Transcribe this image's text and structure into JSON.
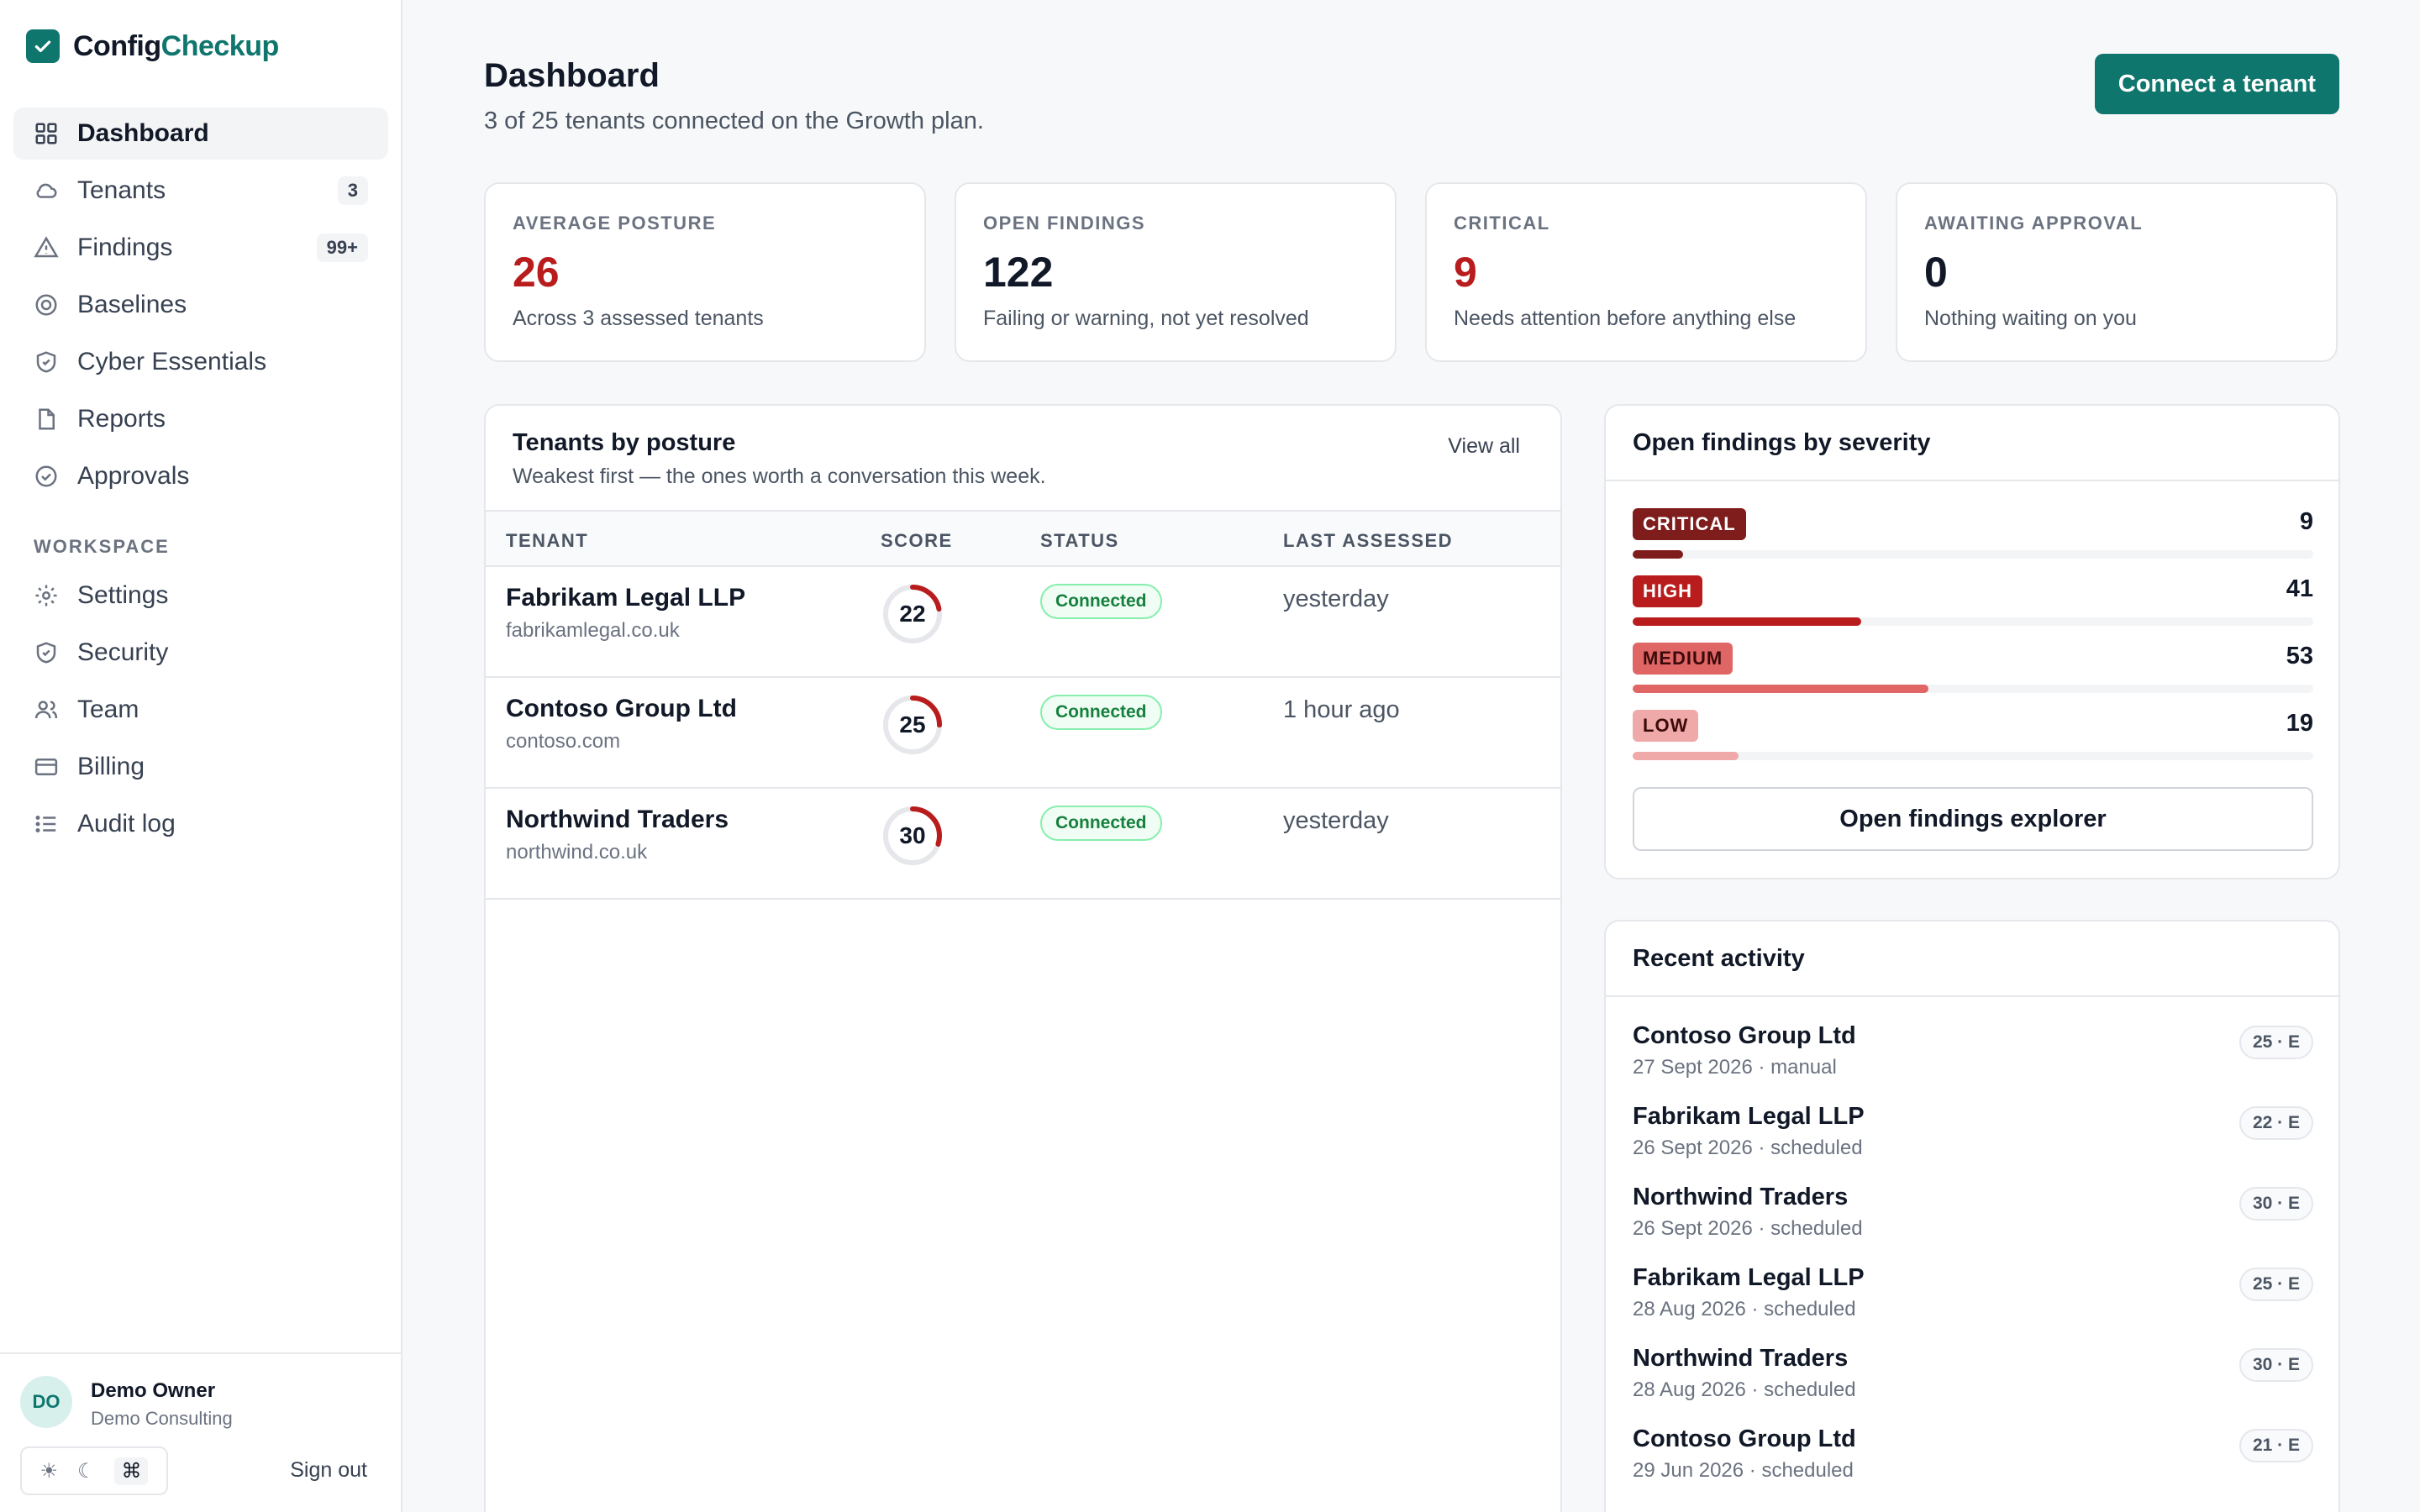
{
  "brand": {
    "part1": "Config",
    "part2": "Checkup"
  },
  "nav": {
    "items": [
      {
        "label": "Dashboard",
        "icon": "grid-icon"
      },
      {
        "label": "Tenants",
        "icon": "cloud-icon",
        "badge": "3"
      },
      {
        "label": "Findings",
        "icon": "warning-icon",
        "badge": "99+"
      },
      {
        "label": "Baselines",
        "icon": "target-icon"
      },
      {
        "label": "Cyber Essentials",
        "icon": "shield-check-icon"
      },
      {
        "label": "Reports",
        "icon": "document-icon"
      },
      {
        "label": "Approvals",
        "icon": "check-circle-icon"
      }
    ],
    "section_label": "WORKSPACE",
    "workspace_items": [
      {
        "label": "Settings",
        "icon": "gear-icon"
      },
      {
        "label": "Security",
        "icon": "shield-icon"
      },
      {
        "label": "Team",
        "icon": "users-icon"
      },
      {
        "label": "Billing",
        "icon": "credit-card-icon"
      },
      {
        "label": "Audit log",
        "icon": "list-icon"
      }
    ]
  },
  "user": {
    "initials": "DO",
    "name": "Demo Owner",
    "org": "Demo Consulting",
    "theme_light": "☀",
    "theme_dark": "☾",
    "theme_system": "⌘",
    "sign_out": "Sign out"
  },
  "header": {
    "title": "Dashboard",
    "subtitle": "3 of 25 tenants connected on the Growth plan.",
    "connect_button": "Connect a tenant"
  },
  "stats": [
    {
      "label": "AVERAGE POSTURE",
      "value": "26",
      "desc": "Across 3 assessed tenants",
      "color": "#b91c1c"
    },
    {
      "label": "OPEN FINDINGS",
      "value": "122",
      "desc": "Failing or warning, not yet resolved",
      "color": "#111827"
    },
    {
      "label": "CRITICAL",
      "value": "9",
      "desc": "Needs attention before anything else",
      "color": "#b91c1c"
    },
    {
      "label": "AWAITING APPROVAL",
      "value": "0",
      "desc": "Nothing waiting on you",
      "color": "#111827"
    }
  ],
  "tenants": {
    "title": "Tenants by posture",
    "subtitle": "Weakest first — the ones worth a conversation this week.",
    "view_all": "View all",
    "columns": [
      "TENANT",
      "SCORE",
      "STATUS",
      "LAST ASSESSED"
    ],
    "rows": [
      {
        "name": "Fabrikam Legal LLP",
        "domain": "fabrikamlegal.co.uk",
        "score": 22,
        "status": "Connected",
        "last": "yesterday"
      },
      {
        "name": "Contoso Group Ltd",
        "domain": "contoso.com",
        "score": 25,
        "status": "Connected",
        "last": "1 hour ago"
      },
      {
        "name": "Northwind Traders",
        "domain": "northwind.co.uk",
        "score": 30,
        "status": "Connected",
        "last": "yesterday"
      }
    ]
  },
  "severity": {
    "title": "Open findings by severity",
    "max": 122,
    "items": [
      {
        "label": "CRITICAL",
        "count": "9",
        "value": 9,
        "pill_bg": "#7f1d1d",
        "pill_fg": "#ffffff",
        "bar": "#7f1d1d"
      },
      {
        "label": "HIGH",
        "count": "41",
        "value": 41,
        "pill_bg": "#b91c1c",
        "pill_fg": "#ffffff",
        "bar": "#b91c1c"
      },
      {
        "label": "MEDIUM",
        "count": "53",
        "value": 53,
        "pill_bg": "#e06666",
        "pill_fg": "#3b0a0a",
        "bar": "#e06666"
      },
      {
        "label": "LOW",
        "count": "19",
        "value": 19,
        "pill_bg": "#f0a9a9",
        "pill_fg": "#3b0a0a",
        "bar": "#f0a9a9"
      }
    ],
    "button": "Open findings explorer"
  },
  "activity": {
    "title": "Recent activity",
    "items": [
      {
        "name": "Contoso Group Ltd",
        "meta": "27 Sept 2026 · manual",
        "tag": "25 · E"
      },
      {
        "name": "Fabrikam Legal LLP",
        "meta": "26 Sept 2026 · scheduled",
        "tag": "22 · E"
      },
      {
        "name": "Northwind Traders",
        "meta": "26 Sept 2026 · scheduled",
        "tag": "30 · E"
      },
      {
        "name": "Fabrikam Legal LLP",
        "meta": "28 Aug 2026 · scheduled",
        "tag": "25 · E"
      },
      {
        "name": "Northwind Traders",
        "meta": "28 Aug 2026 · scheduled",
        "tag": "30 · E"
      },
      {
        "name": "Contoso Group Ltd",
        "meta": "29 Jun 2026 · scheduled",
        "tag": "21 · E"
      }
    ]
  },
  "colors": {
    "accent": "#0f766e",
    "danger": "#b91c1c",
    "success": "#15803d"
  }
}
